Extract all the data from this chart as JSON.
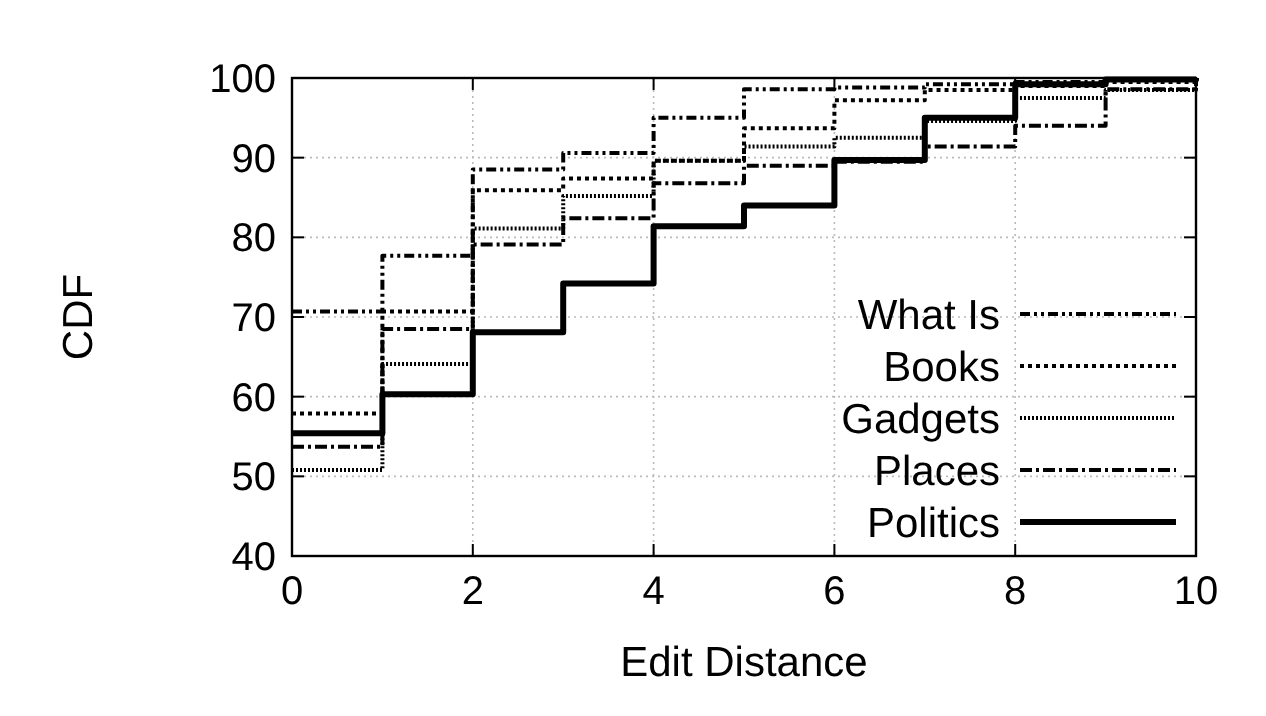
{
  "chart_data": {
    "type": "step",
    "xlabel": "Edit Distance",
    "ylabel": "CDF",
    "x": [
      0,
      1,
      2,
      3,
      4,
      5,
      6,
      7,
      8,
      9,
      10
    ],
    "xlim": [
      0,
      10
    ],
    "xticks": [
      0,
      2,
      4,
      6,
      8,
      10
    ],
    "ylim": [
      40,
      100
    ],
    "yticks": [
      40,
      50,
      60,
      70,
      80,
      90,
      100
    ],
    "grid": true,
    "legend": "bottom right",
    "series": [
      {
        "name": "What Is",
        "color": "#000000",
        "line_style": "dotted",
        "values": [
          70.7,
          77.7,
          88.5,
          90.6,
          95,
          98.6,
          98.8,
          99.2,
          99.5,
          99.8,
          100
        ]
      },
      {
        "name": "Books",
        "color": "#000000",
        "line_style": "dotted",
        "values": [
          57.9,
          70.7,
          85.9,
          87.4,
          89.6,
          93.7,
          97.2,
          98.5,
          99,
          99.5,
          100
        ]
      },
      {
        "name": "Gadgets",
        "color": "#000000",
        "line_style": "dotted",
        "values": [
          50.8,
          64.1,
          81.1,
          85.2,
          89.6,
          91.4,
          92.5,
          94.6,
          97.5,
          98.5,
          100
        ]
      },
      {
        "name": "Places",
        "color": "#000000",
        "line_style": "dashed",
        "values": [
          53.7,
          68.5,
          79.1,
          82.4,
          86.8,
          89,
          89.5,
          91.4,
          94,
          98.6,
          100
        ]
      },
      {
        "name": "Politics",
        "color": "#000000",
        "line_style": "solid",
        "values": [
          55.4,
          60.3,
          68.1,
          74.2,
          81.4,
          84,
          89.7,
          95,
          99.2,
          99.8,
          100
        ]
      }
    ]
  }
}
